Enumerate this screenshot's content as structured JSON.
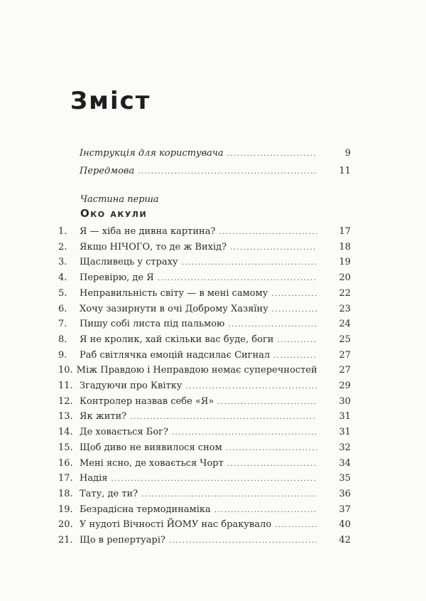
{
  "title": "Зміст",
  "front_matter": [
    {
      "text": "Інструкція для користувача",
      "page": "9"
    },
    {
      "text": "Передмова",
      "page": "11"
    }
  ],
  "part": {
    "label": "Частина перша",
    "title": "Око акули"
  },
  "entries": [
    {
      "num": "1.",
      "text": "Я — хіба не дивна картина?",
      "page": "17"
    },
    {
      "num": "2.",
      "text": "Якщо НІЧОГО, то де ж Вихід?",
      "page": "18"
    },
    {
      "num": "3.",
      "text": "Щасливець у страху",
      "page": "19"
    },
    {
      "num": "4.",
      "text": "Перевірю, де Я",
      "page": "20"
    },
    {
      "num": "5.",
      "text": "Неправильність світу — в мені самому",
      "page": "22"
    },
    {
      "num": "6.",
      "text": "Хочу зазирнути в очі Доброму Хазяїну",
      "page": "23"
    },
    {
      "num": "7.",
      "text": "Пишу собі листа під пальмою",
      "page": "24"
    },
    {
      "num": "8.",
      "text": "Я не кролик, хай скільки вас буде, боги",
      "page": "25"
    },
    {
      "num": "9.",
      "text": "Раб світлячка емоцій надсилає Сигнал",
      "page": "27"
    },
    {
      "num": "10.",
      "text": "Між Правдою і Неправдою немає суперечностей",
      "page": "27"
    },
    {
      "num": "11.",
      "text": "Згадуючи про Квітку",
      "page": "29"
    },
    {
      "num": "12.",
      "text": "Контролер назвав себе «Я»",
      "page": "30"
    },
    {
      "num": "13.",
      "text": "Як жити?",
      "page": "31"
    },
    {
      "num": "14.",
      "text": "Де ховається Бог?",
      "page": "31"
    },
    {
      "num": "15.",
      "text": "Щоб диво не виявилося сном",
      "page": "32"
    },
    {
      "num": "16.",
      "text": "Мені ясно, де ховається Чорт",
      "page": "34"
    },
    {
      "num": "17.",
      "text": "Надія",
      "page": "35"
    },
    {
      "num": "18.",
      "text": "Тату, де ти?",
      "page": "36"
    },
    {
      "num": "19.",
      "text": "Безрадісна термодинаміка",
      "page": "37"
    },
    {
      "num": "20.",
      "text": "У нудоті Вічності ЙОМУ нас бракувало",
      "page": "40"
    },
    {
      "num": "21.",
      "text": "Що в репертуарі?",
      "page": "42"
    }
  ]
}
